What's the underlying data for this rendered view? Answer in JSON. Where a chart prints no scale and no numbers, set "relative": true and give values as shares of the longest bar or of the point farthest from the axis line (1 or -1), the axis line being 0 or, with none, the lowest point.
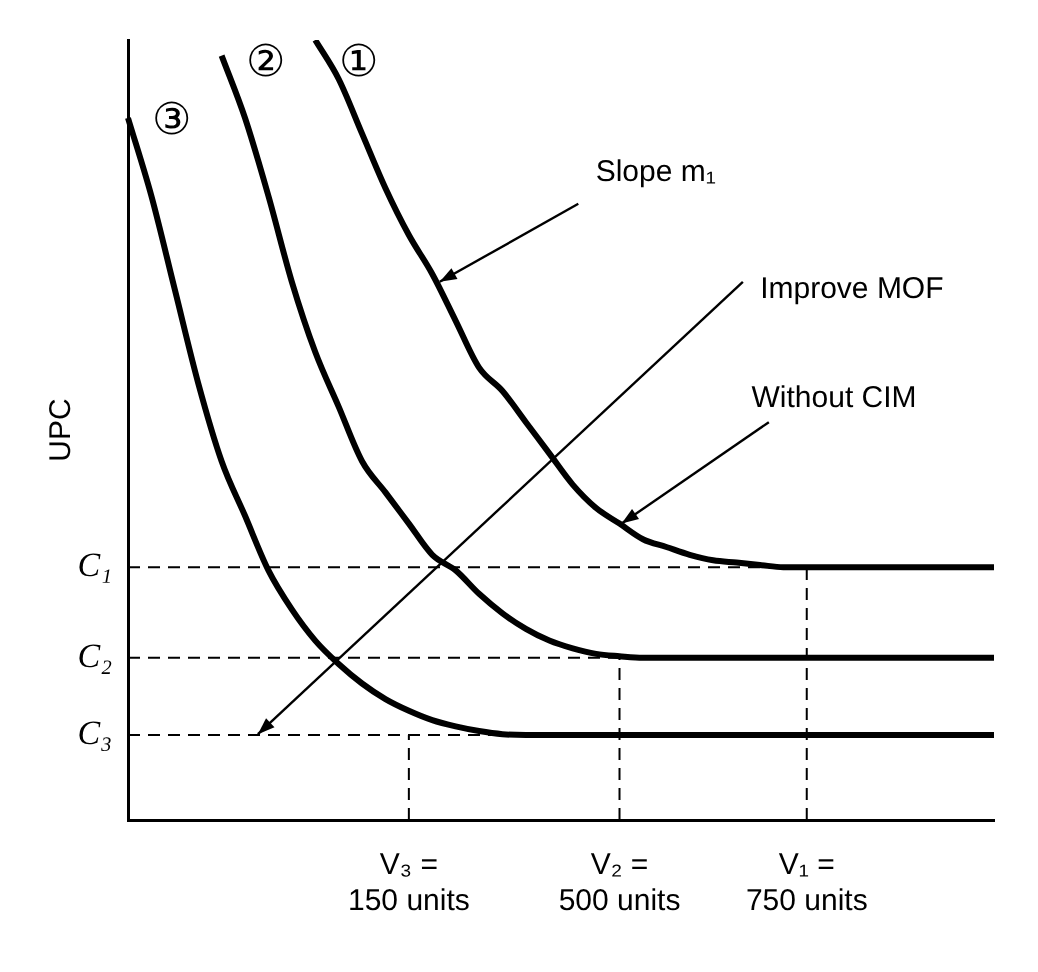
{
  "chart_data": {
    "type": "line",
    "relative": true,
    "ylabel": "UPC",
    "legend": false,
    "grid": false,
    "marker": "none",
    "line_style": "solid",
    "categories": [
      null,
      null,
      null,
      null,
      null,
      null,
      null,
      null,
      null,
      null,
      null,
      null,
      "V₃ = 150 units",
      null,
      null,
      null,
      null,
      null,
      null,
      null,
      null,
      "V₂ = 500 units",
      null,
      null,
      null,
      null,
      null,
      null,
      null,
      "V₁ = 750 units",
      null,
      null,
      null,
      null,
      null,
      null,
      null,
      null
    ],
    "series": [
      {
        "name": "①",
        "color": "#000000",
        "values": [
          null,
          null,
          null,
          null,
          null,
          null,
          null,
          null,
          1.0,
          0.95,
          0.88,
          0.81,
          0.75,
          0.7,
          0.64,
          0.58,
          0.55,
          0.51,
          0.47,
          0.43,
          0.4,
          0.38,
          0.36,
          0.35,
          0.34,
          0.333,
          0.33,
          0.327,
          0.324,
          0.324,
          0.324,
          0.324,
          0.324,
          0.324,
          0.324,
          0.324,
          0.324,
          0.324
        ]
      },
      {
        "name": "②",
        "color": "#000000",
        "values": [
          null,
          null,
          null,
          null,
          0.98,
          0.9,
          0.8,
          0.69,
          0.6,
          0.53,
          0.46,
          0.42,
          0.38,
          0.34,
          0.32,
          0.29,
          0.265,
          0.245,
          0.23,
          0.22,
          0.213,
          0.21,
          0.208,
          0.208,
          0.208,
          0.208,
          0.208,
          0.208,
          0.208,
          0.208,
          0.208,
          0.208,
          0.208,
          0.208,
          0.208,
          0.208,
          0.208,
          0.208
        ]
      },
      {
        "name": "③",
        "color": "#000000",
        "values": [
          0.9,
          0.8,
          0.68,
          0.56,
          0.46,
          0.39,
          0.32,
          0.27,
          0.23,
          0.2,
          0.175,
          0.155,
          0.14,
          0.128,
          0.12,
          0.114,
          0.11,
          0.109,
          0.109,
          0.109,
          0.109,
          0.109,
          0.109,
          0.109,
          0.109,
          0.109,
          0.109,
          0.109,
          0.109,
          0.109,
          0.109,
          0.109,
          0.109,
          0.109,
          0.109,
          0.109,
          0.109,
          0.109
        ]
      }
    ],
    "ref_lines": [
      {
        "axis": "y",
        "value": 0.324,
        "label": "C₁",
        "line_style": "dashed"
      },
      {
        "axis": "y",
        "value": 0.208,
        "label": "C₂",
        "line_style": "dashed"
      },
      {
        "axis": "y",
        "value": 0.109,
        "label": "C₃",
        "line_style": "dashed"
      },
      {
        "axis": "x",
        "value": "V₃ = 150 units",
        "line_style": "dashed"
      },
      {
        "axis": "x",
        "value": "V₂ = 500 units",
        "line_style": "dashed"
      },
      {
        "axis": "x",
        "value": "V₁ = 750 units",
        "line_style": "dashed"
      }
    ],
    "annotations": [
      "Slope m₁",
      "Improve MOF",
      "Without CIM"
    ]
  }
}
